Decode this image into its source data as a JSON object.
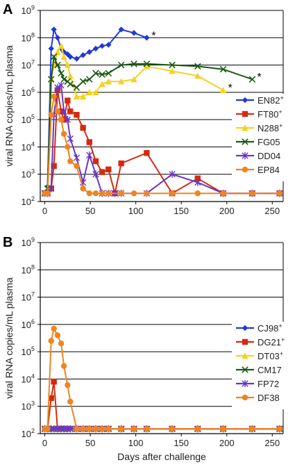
{
  "chart_data": [
    {
      "panel": "A",
      "type": "line",
      "ylabel": "viral RNA copies/mL plasma",
      "xlabel": "",
      "xlim": [
        -5,
        262
      ],
      "ylim_log10": [
        2,
        9
      ],
      "x_ticks": [
        0,
        50,
        100,
        150,
        200,
        250
      ],
      "y_tick_mantissa": "10",
      "y_tick_exponents": [
        "2",
        "3",
        "4",
        "5",
        "6",
        "7",
        "8",
        "9"
      ],
      "grid": "horizontal",
      "legend_position": "right",
      "series": [
        {
          "name": "EN82",
          "sup": "+",
          "color": "#2138d8",
          "marker": "diamond",
          "x": [
            0,
            3,
            7,
            10,
            14,
            18,
            21,
            25,
            28,
            35,
            42,
            49,
            56,
            63,
            70,
            84,
            98,
            112
          ],
          "y": [
            200,
            350,
            40000000,
            200000000,
            100000000,
            40000000,
            30000000,
            25000000,
            20000000,
            17000000,
            23000000,
            30000000,
            40000000,
            50000000,
            55000000,
            200000000,
            150000000,
            100000000
          ]
        },
        {
          "name": "FT80",
          "sup": "+",
          "color": "#d42a10",
          "marker": "square",
          "x": [
            0,
            3,
            7,
            10,
            14,
            18,
            21,
            25,
            28,
            35,
            42,
            49,
            56,
            63,
            70,
            77,
            84,
            112,
            140,
            168,
            196,
            228,
            258
          ],
          "y": [
            200,
            200,
            300,
            2000,
            1200000,
            200000,
            100000,
            500000,
            200000,
            150000,
            50000,
            15000,
            3000,
            1200,
            1500,
            200,
            2500,
            6000,
            200,
            700,
            200,
            200,
            200
          ]
        },
        {
          "name": "N288",
          "sup": "+",
          "color": "#f2d320",
          "marker": "triangle",
          "x": [
            0,
            3,
            7,
            10,
            14,
            18,
            21,
            25,
            28,
            35,
            42,
            49,
            56,
            63,
            70,
            84,
            98,
            112,
            140,
            168,
            196
          ],
          "y": [
            200,
            300,
            3000000,
            10000000,
            30000000,
            50000000,
            20000000,
            10000000,
            4000000,
            700000,
            700000,
            1000000,
            1000000,
            2000000,
            2500000,
            2500000,
            3000000,
            9000000,
            6000000,
            4000000,
            1200000
          ]
        },
        {
          "name": "FG05",
          "sup": "",
          "color": "#1b5a15",
          "marker": "x",
          "x": [
            0,
            3,
            7,
            10,
            14,
            18,
            21,
            25,
            28,
            35,
            42,
            49,
            56,
            63,
            70,
            84,
            98,
            112,
            140,
            168,
            196,
            228
          ],
          "y": [
            200,
            300,
            3000000,
            20000000,
            10000000,
            5000000,
            3000000,
            2500000,
            2000000,
            1500000,
            2500000,
            3000000,
            5000000,
            4500000,
            5000000,
            10000000,
            11000000,
            11000000,
            10000000,
            9000000,
            7000000,
            3000000
          ]
        },
        {
          "name": "DD04",
          "sup": "",
          "color": "#6a35c8",
          "marker": "star",
          "x": [
            0,
            3,
            7,
            10,
            14,
            18,
            21,
            25,
            28,
            35,
            42,
            49,
            56,
            63,
            70,
            77,
            84,
            112,
            140,
            168,
            196,
            228,
            258
          ],
          "y": [
            200,
            200,
            300,
            150000,
            1500000,
            1800000,
            200000,
            100000,
            20000,
            4000,
            500,
            5000,
            1000,
            200,
            200,
            200,
            200,
            200,
            1000,
            500,
            200,
            200,
            200
          ]
        },
        {
          "name": "EP84",
          "sup": "",
          "color": "#ee8520",
          "marker": "circle",
          "x": [
            0,
            3,
            7,
            10,
            14,
            18,
            21,
            25,
            28,
            35,
            42,
            49,
            56,
            63,
            70,
            84,
            98,
            112,
            140,
            168,
            196,
            228,
            258
          ],
          "y": [
            200,
            200,
            150000,
            700000,
            200000,
            100000,
            30000,
            10000,
            3000,
            2000,
            300,
            200,
            200,
            200,
            200,
            200,
            200,
            200,
            200,
            200,
            200,
            200,
            200
          ]
        }
      ],
      "annotations": [
        {
          "text": "*",
          "series": "EN82"
        },
        {
          "text": "*",
          "series": "FG05"
        },
        {
          "text": "*",
          "series": "N288"
        }
      ]
    },
    {
      "panel": "B",
      "type": "line",
      "ylabel": "viral RNA copies/mL plasma",
      "xlabel": "Days after challenge",
      "xlim": [
        -5,
        262
      ],
      "ylim_log10": [
        2,
        9
      ],
      "x_ticks": [
        0,
        50,
        100,
        150,
        200,
        250
      ],
      "y_tick_mantissa": "10",
      "y_tick_exponents": [
        "2",
        "3",
        "4",
        "5",
        "6",
        "7",
        "8",
        "9"
      ],
      "grid": "horizontal",
      "legend_position": "right",
      "series": [
        {
          "name": "CJ98",
          "sup": "+",
          "color": "#2138d8",
          "marker": "diamond",
          "x": [
            0,
            3,
            7,
            10,
            14,
            18,
            21,
            25,
            28,
            35,
            42,
            49,
            56,
            63,
            70,
            84,
            98,
            112,
            140,
            168,
            196,
            228,
            258
          ],
          "y": [
            150,
            150,
            150,
            150,
            150,
            150,
            150,
            150,
            150,
            150,
            150,
            150,
            150,
            150,
            150,
            150,
            150,
            150,
            150,
            150,
            150,
            150,
            150
          ]
        },
        {
          "name": "DG21",
          "sup": "+",
          "color": "#d42a10",
          "marker": "square",
          "x": [
            0,
            3,
            7,
            10,
            14,
            18,
            21,
            25,
            28,
            35,
            42,
            49,
            56,
            63,
            70,
            84,
            98,
            112,
            140,
            168,
            196,
            228,
            258
          ],
          "y": [
            150,
            150,
            2000,
            8000,
            150,
            150,
            150,
            150,
            150,
            150,
            150,
            150,
            150,
            150,
            150,
            150,
            150,
            150,
            150,
            150,
            150,
            150,
            150
          ]
        },
        {
          "name": "DT03",
          "sup": "+",
          "color": "#f2d320",
          "marker": "triangle",
          "x": [
            0,
            3,
            7,
            10,
            14,
            18,
            21,
            25,
            28,
            35,
            42,
            49,
            56,
            63,
            70,
            84,
            98,
            112,
            140,
            168,
            196,
            228,
            258
          ],
          "y": [
            150,
            150,
            150,
            150,
            150,
            150,
            150,
            150,
            150,
            150,
            150,
            150,
            150,
            150,
            150,
            150,
            150,
            150,
            150,
            150,
            150,
            150,
            150
          ]
        },
        {
          "name": "CM17",
          "sup": "",
          "color": "#1b5a15",
          "marker": "x",
          "x": [
            0,
            3,
            7,
            10,
            14,
            18,
            21,
            25,
            28,
            35,
            42,
            49,
            56,
            63,
            70,
            84,
            98,
            112,
            140,
            168,
            196,
            228,
            258
          ],
          "y": [
            150,
            150,
            150,
            150,
            150,
            150,
            150,
            150,
            150,
            150,
            150,
            150,
            150,
            150,
            150,
            150,
            150,
            150,
            150,
            150,
            150,
            150,
            150
          ]
        },
        {
          "name": "FP72",
          "sup": "",
          "color": "#6a35c8",
          "marker": "star",
          "x": [
            0,
            3,
            7,
            10,
            14,
            18,
            21,
            25,
            28,
            35,
            42,
            49,
            56,
            63,
            70,
            84,
            98,
            112,
            140,
            168,
            196,
            228,
            258
          ],
          "y": [
            150,
            150,
            150,
            150,
            150,
            150,
            150,
            150,
            150,
            150,
            150,
            150,
            150,
            150,
            150,
            150,
            150,
            150,
            150,
            150,
            150,
            150,
            150
          ]
        },
        {
          "name": "DF38",
          "sup": "",
          "color": "#ee8520",
          "marker": "circle",
          "x": [
            0,
            3,
            7,
            10,
            14,
            18,
            21,
            25,
            28,
            35,
            42,
            49,
            56,
            63,
            70,
            84,
            98,
            112,
            140,
            168,
            196,
            228,
            258
          ],
          "y": [
            150,
            150,
            250000,
            700000,
            400000,
            200000,
            30000,
            6000,
            1500,
            150,
            150,
            150,
            150,
            150,
            150,
            150,
            150,
            150,
            150,
            150,
            150,
            150,
            150
          ]
        }
      ],
      "annotations": []
    }
  ]
}
